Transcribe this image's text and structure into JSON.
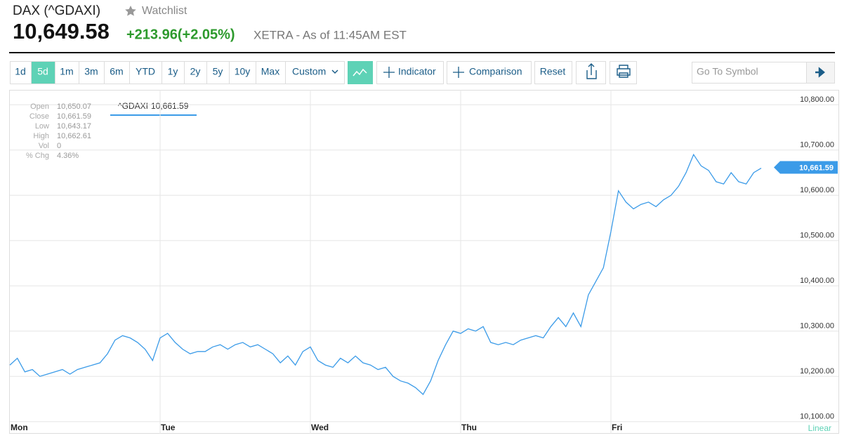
{
  "header": {
    "title": "DAX (^GDAXI)",
    "watchlist": "Watchlist",
    "price": "10,649.58",
    "change": "+213.96(+2.05%)",
    "exchange": "XETRA - As of 11:45AM EST"
  },
  "toolbar": {
    "ranges": [
      {
        "label": "1d"
      },
      {
        "label": "5d",
        "active": true
      },
      {
        "label": "1m"
      },
      {
        "label": "3m"
      },
      {
        "label": "6m"
      },
      {
        "label": "YTD"
      },
      {
        "label": "1y"
      },
      {
        "label": "2y"
      },
      {
        "label": "5y"
      },
      {
        "label": "10y"
      },
      {
        "label": "Max"
      }
    ],
    "custom": "Custom",
    "indicator": "Indicator",
    "comparison": "Comparison",
    "reset": "Reset",
    "search": "Go To Symbol"
  },
  "chart_data": {
    "type": "line",
    "categories": [
      "Mon",
      null,
      null,
      null,
      null,
      null,
      null,
      null,
      null,
      null,
      null,
      null,
      null,
      null,
      null,
      null,
      null,
      null,
      null,
      null,
      "Tue",
      null,
      null,
      null,
      null,
      null,
      null,
      null,
      null,
      null,
      null,
      null,
      null,
      null,
      null,
      null,
      null,
      null,
      null,
      null,
      "Wed",
      null,
      null,
      null,
      null,
      null,
      null,
      null,
      null,
      null,
      null,
      null,
      null,
      null,
      null,
      null,
      null,
      null,
      null,
      null,
      "Thu",
      null,
      null,
      null,
      null,
      null,
      null,
      null,
      null,
      null,
      null,
      null,
      null,
      null,
      null,
      null,
      null,
      null,
      null,
      null,
      "Fri",
      null,
      null,
      null,
      null,
      null,
      null,
      null,
      null,
      null,
      null,
      null,
      null,
      null,
      null,
      null,
      null,
      null,
      null,
      null,
      null
    ],
    "series": [
      {
        "name": "^GDAXI",
        "color": "#3b9be8",
        "values": [
          10225,
          10240,
          10210,
          10215,
          10200,
          10205,
          10210,
          10215,
          10205,
          10215,
          10220,
          10225,
          10230,
          10250,
          10280,
          10290,
          10285,
          10275,
          10260,
          10235,
          10285,
          10295,
          10275,
          10260,
          10250,
          10255,
          10255,
          10265,
          10270,
          10260,
          10270,
          10275,
          10265,
          10270,
          10260,
          10250,
          10230,
          10245,
          10225,
          10255,
          10265,
          10235,
          10225,
          10220,
          10240,
          10230,
          10245,
          10230,
          10225,
          10215,
          10220,
          10200,
          10190,
          10185,
          10175,
          10160,
          10190,
          10235,
          10270,
          10300,
          10295,
          10305,
          10300,
          10310,
          10275,
          10270,
          10275,
          10270,
          10280,
          10285,
          10290,
          10285,
          10310,
          10330,
          10310,
          10340,
          10310,
          10380,
          10410,
          10440,
          10520,
          10610,
          10585,
          10570,
          10580,
          10585,
          10575,
          10590,
          10600,
          10620,
          10650,
          10690,
          10665,
          10655,
          10630,
          10625,
          10650,
          10630,
          10625,
          10650,
          10660
        ]
      }
    ],
    "ylim": [
      10098,
      10833
    ],
    "yticks": [
      {
        "value": 10100,
        "label": "10,100.00"
      },
      {
        "value": 10200,
        "label": "10,200.00"
      },
      {
        "value": 10300,
        "label": "10,300.00"
      },
      {
        "value": 10400,
        "label": "10,400.00"
      },
      {
        "value": 10500,
        "label": "10,500.00"
      },
      {
        "value": 10600,
        "label": "10,600.00"
      },
      {
        "value": 10700,
        "label": "10,700.00"
      },
      {
        "value": 10800,
        "label": "10,800.00"
      }
    ],
    "grid": true,
    "scale_label": "Linear",
    "last_label": {
      "value": 10661.59,
      "label": "10,661.59"
    },
    "tooltip": {
      "value": "10,661.59"
    },
    "info": [
      {
        "label": "Open",
        "value": "10,650.07"
      },
      {
        "label": "Close",
        "value": "10,661.59"
      },
      {
        "label": "Low",
        "value": "10,643.17"
      },
      {
        "label": "High",
        "value": "10,662.61"
      },
      {
        "label": "Vol",
        "value": "0"
      },
      {
        "label": "% Chg",
        "value": "4.36%"
      }
    ]
  }
}
